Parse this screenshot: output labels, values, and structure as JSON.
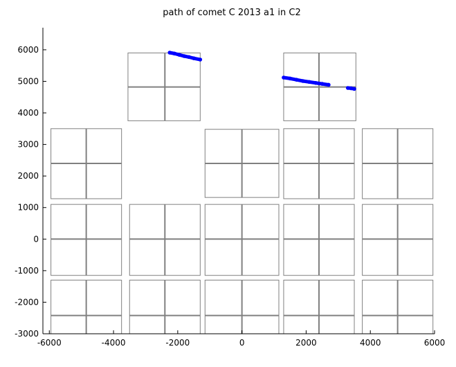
{
  "chart_data": {
    "type": "scatter",
    "title": "path of comet C 2013 a1 in C2",
    "xlabel": "",
    "ylabel": "",
    "xlim": [
      -6200,
      6000
    ],
    "ylim": [
      -3000,
      6700
    ],
    "xticks": [
      -6000,
      -4000,
      -2000,
      0,
      2000,
      4000,
      6000
    ],
    "xtick_labels": [
      "-6000",
      "-4000",
      "-2000",
      "0",
      "2000",
      "4000",
      "6000"
    ],
    "yticks": [
      -3000,
      -2000,
      -1000,
      0,
      1000,
      2000,
      3000,
      4000,
      5000,
      6000
    ],
    "ytick_labels": [
      "-3000",
      "-2000",
      "-1000",
      "0",
      "1000",
      "2000",
      "3000",
      "4000",
      "5000",
      "6000"
    ],
    "grid": false,
    "colors": {
      "path": "#0000ff",
      "ccd": "#808080",
      "axis": "#000000"
    },
    "ccd_tiles": [
      {
        "x0": -3550,
        "x1": -1300,
        "y0": 3750,
        "y1": 5900,
        "split_x": -2400,
        "split_y": 4820
      },
      {
        "x0": 1300,
        "x1": 3550,
        "y0": 3750,
        "y1": 5900,
        "split_x": 2400,
        "split_y": 4820
      },
      {
        "x0": -5950,
        "x1": -3750,
        "y0": 1280,
        "y1": 3500,
        "split_x": -4850,
        "split_y": 2400
      },
      {
        "x0": -1150,
        "x1": 1150,
        "y0": 1320,
        "y1": 3480,
        "split_x": 0,
        "split_y": 2400
      },
      {
        "x0": 1300,
        "x1": 3500,
        "y0": 1280,
        "y1": 3500,
        "split_x": 2400,
        "split_y": 2400
      },
      {
        "x0": 3750,
        "x1": 5950,
        "y0": 1280,
        "y1": 3500,
        "split_x": 4850,
        "split_y": 2400
      },
      {
        "x0": -5950,
        "x1": -3750,
        "y0": -1150,
        "y1": 1100,
        "split_x": -4850,
        "split_y": 0
      },
      {
        "x0": -3500,
        "x1": -1300,
        "y0": -1150,
        "y1": 1100,
        "split_x": -2400,
        "split_y": 0
      },
      {
        "x0": -1150,
        "x1": 1150,
        "y0": -1150,
        "y1": 1100,
        "split_x": 0,
        "split_y": 0
      },
      {
        "x0": 1300,
        "x1": 3500,
        "y0": -1150,
        "y1": 1100,
        "split_x": 2400,
        "split_y": 0
      },
      {
        "x0": 3750,
        "x1": 5950,
        "y0": -1150,
        "y1": 1100,
        "split_x": 4850,
        "split_y": 0
      },
      {
        "x0": -5950,
        "x1": -3750,
        "y0": -3000,
        "y1": -1300,
        "split_x": -4850,
        "split_y": -2420
      },
      {
        "x0": -3500,
        "x1": -1300,
        "y0": -3000,
        "y1": -1300,
        "split_x": -2400,
        "split_y": -2420
      },
      {
        "x0": -1150,
        "x1": 1150,
        "y0": -3000,
        "y1": -1300,
        "split_x": 0,
        "split_y": -2420
      },
      {
        "x0": 1300,
        "x1": 3500,
        "y0": -3000,
        "y1": -1300,
        "split_x": 2400,
        "split_y": -2420
      },
      {
        "x0": 3750,
        "x1": 5950,
        "y0": -3000,
        "y1": -1300,
        "split_x": 4850,
        "split_y": -2420
      }
    ],
    "series": [
      {
        "x": [
          -2250,
          -2100,
          -1950,
          -1800,
          -1650,
          -1500,
          -1300
        ],
        "y": [
          5910,
          5880,
          5840,
          5800,
          5770,
          5730,
          5690
        ]
      },
      {
        "x": [
          1300,
          1500,
          1700,
          1900,
          2100,
          2300,
          2500,
          2700
        ],
        "y": [
          5120,
          5090,
          5050,
          5010,
          4980,
          4950,
          4920,
          4890
        ]
      },
      {
        "x": [
          3300,
          3400,
          3500
        ],
        "y": [
          4790,
          4780,
          4760
        ]
      }
    ]
  }
}
